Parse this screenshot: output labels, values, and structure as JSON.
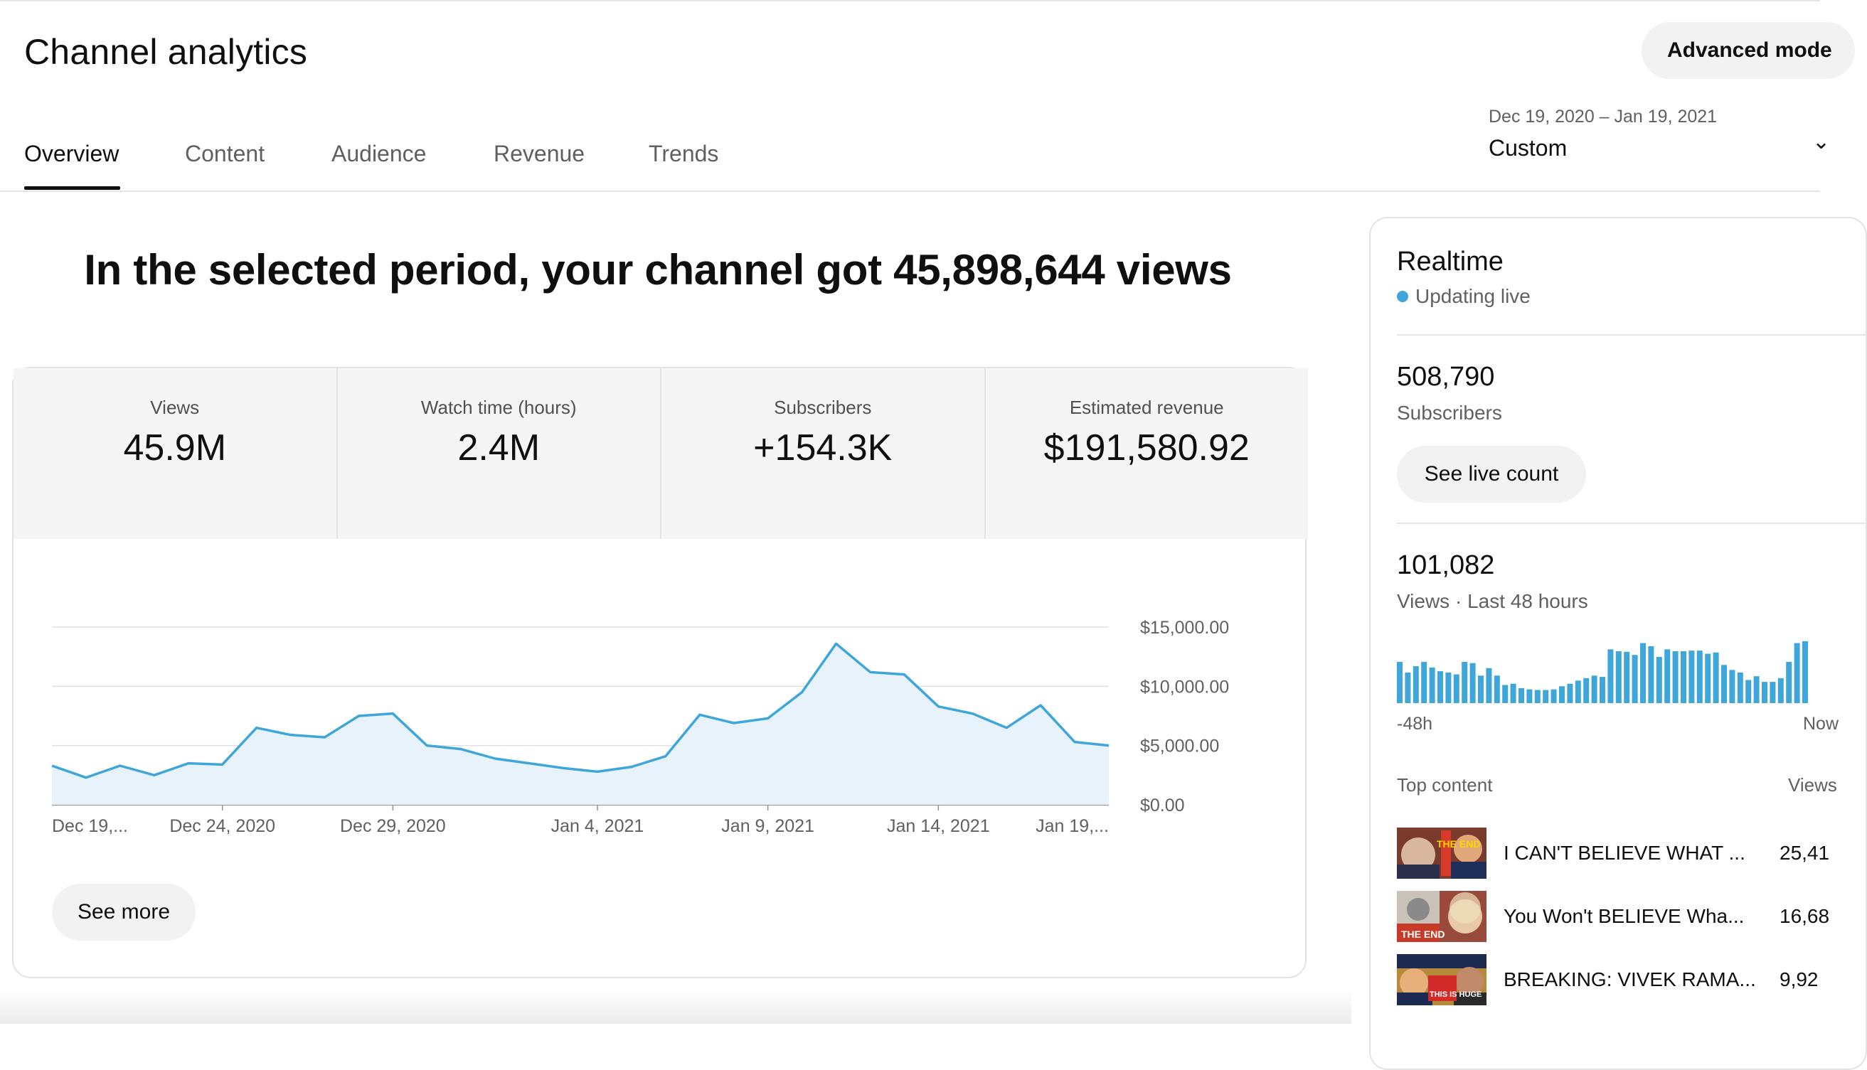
{
  "page": {
    "title": "Channel analytics",
    "advanced_mode_label": "Advanced mode"
  },
  "tabs": [
    {
      "label": "Overview",
      "active": true
    },
    {
      "label": "Content"
    },
    {
      "label": "Audience"
    },
    {
      "label": "Revenue"
    },
    {
      "label": "Trends"
    }
  ],
  "date_picker": {
    "range": "Dec 19, 2020 – Jan 19, 2021",
    "preset": "Custom",
    "icon": "chevron-down-icon"
  },
  "headline": "In the selected period, your channel got 45,898,644 views",
  "metrics": [
    {
      "label": "Views",
      "value": "45.9M"
    },
    {
      "label": "Watch time (hours)",
      "value": "2.4M"
    },
    {
      "label": "Subscribers",
      "value": "+154.3K"
    },
    {
      "label": "Estimated revenue",
      "value": "$191,580.92"
    }
  ],
  "chart_data": {
    "type": "area",
    "title": "",
    "xlabel": "",
    "ylabel": "",
    "x": [
      "Dec 19",
      "Dec 20",
      "Dec 21",
      "Dec 22",
      "Dec 23",
      "Dec 24",
      "Dec 25",
      "Dec 26",
      "Dec 27",
      "Dec 28",
      "Dec 29",
      "Dec 30",
      "Dec 31",
      "Jan 1",
      "Jan 2",
      "Jan 3",
      "Jan 4",
      "Jan 5",
      "Jan 6",
      "Jan 7",
      "Jan 8",
      "Jan 9",
      "Jan 10",
      "Jan 11",
      "Jan 12",
      "Jan 13",
      "Jan 14",
      "Jan 15",
      "Jan 16",
      "Jan 17",
      "Jan 18",
      "Jan 19"
    ],
    "values": [
      3300,
      2300,
      3300,
      2500,
      3500,
      3400,
      6500,
      5900,
      5700,
      7500,
      7700,
      5000,
      4700,
      3900,
      3500,
      3100,
      2800,
      3200,
      4100,
      7600,
      6900,
      7300,
      9500,
      13600,
      11200,
      11000,
      8300,
      7700,
      6500,
      8400,
      5300,
      5000
    ],
    "ylim": [
      0,
      15000
    ],
    "yticks": [
      "$15,000.00",
      "$10,000.00",
      "$5,000.00",
      "$0.00"
    ],
    "ytick_values": [
      15000,
      10000,
      5000,
      0
    ],
    "xticks": [
      {
        "label": "Dec 19,...",
        "index": 0
      },
      {
        "label": "Dec 24, 2020",
        "index": 5
      },
      {
        "label": "Dec 29, 2020",
        "index": 10
      },
      {
        "label": "Jan 4, 2021",
        "index": 16
      },
      {
        "label": "Jan 9, 2021",
        "index": 21
      },
      {
        "label": "Jan 14, 2021",
        "index": 26
      },
      {
        "label": "Jan 19,...",
        "index": 31
      }
    ],
    "grid": true,
    "line_color": "#3ea6d9",
    "fill_color": "#e8f2fb"
  },
  "see_more_label": "See more",
  "realtime": {
    "title": "Realtime",
    "live_label": "Updating live",
    "live_color": "#3ea6d9",
    "subscribers_value": "508,790",
    "subscribers_label": "Subscribers",
    "live_count_button": "See live count",
    "views_value": "101,082",
    "views_label": "Views · Last 48 hours",
    "bars": [
      0.66,
      0.49,
      0.59,
      0.66,
      0.57,
      0.51,
      0.49,
      0.46,
      0.66,
      0.64,
      0.44,
      0.56,
      0.44,
      0.29,
      0.31,
      0.24,
      0.22,
      0.21,
      0.21,
      0.22,
      0.27,
      0.31,
      0.36,
      0.4,
      0.44,
      0.42,
      0.86,
      0.83,
      0.82,
      0.77,
      0.96,
      0.91,
      0.74,
      0.86,
      0.83,
      0.83,
      0.84,
      0.84,
      0.79,
      0.81,
      0.61,
      0.53,
      0.49,
      0.37,
      0.43,
      0.34,
      0.34,
      0.4,
      0.66,
      0.96,
      0.99
    ],
    "axis_start": "-48h",
    "axis_end": "Now",
    "top_content_label": "Top content",
    "top_views_label": "Views",
    "top_content": [
      {
        "title": "I CAN'T BELIEVE WHAT ...",
        "views": "25,41"
      },
      {
        "title": "You Won't BELIEVE Wha...",
        "views": "16,68"
      },
      {
        "title": "BREAKING: VIVEK RAMA...",
        "views": "9,92"
      }
    ],
    "thumb_texts": [
      "THE END",
      "THE END",
      "THIS IS HUGE"
    ]
  }
}
